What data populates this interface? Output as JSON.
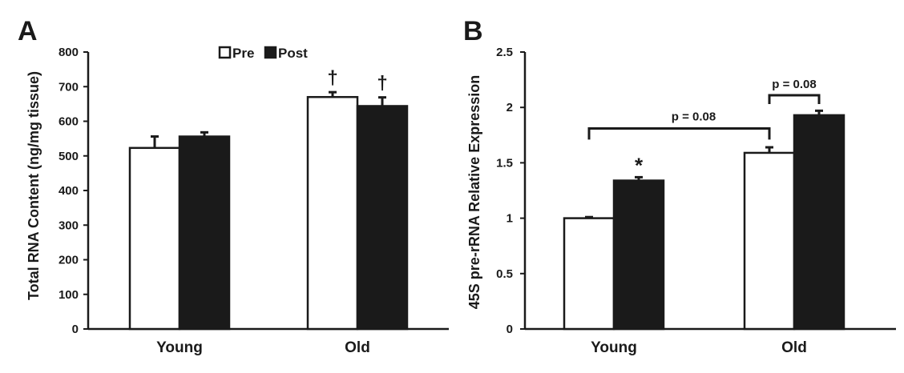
{
  "chart_data": [
    {
      "type": "bar",
      "panel": "A",
      "categories": [
        "Young",
        "Old"
      ],
      "ylabel": "Total RNA Content (ng/mg tissue)",
      "ylim": [
        0,
        800
      ],
      "yticks": [
        0,
        100,
        200,
        300,
        400,
        500,
        600,
        700,
        800
      ],
      "legend": {
        "placement": "top-center",
        "entries": [
          "Pre",
          "Post"
        ]
      },
      "series": [
        {
          "name": "Pre",
          "color": "#ffffff",
          "values": [
            523,
            670
          ],
          "errors": [
            33,
            14
          ]
        },
        {
          "name": "Post",
          "color": "#1a1a1a",
          "values": [
            556,
            644
          ],
          "errors": [
            12,
            25
          ]
        }
      ],
      "annotations": [
        {
          "text": "†",
          "category": "Old",
          "series": "Pre"
        },
        {
          "text": "†",
          "category": "Old",
          "series": "Post"
        }
      ],
      "grid": false
    },
    {
      "type": "bar",
      "panel": "B",
      "categories": [
        "Young",
        "Old"
      ],
      "ylabel": "45S pre-rRNA Relative Expression",
      "ylim": [
        0,
        2.5
      ],
      "yticks": [
        "0",
        "0.5",
        "1",
        "1.5",
        "2",
        "2.5"
      ],
      "series": [
        {
          "name": "Pre",
          "color": "#ffffff",
          "values": [
            1.0,
            1.59
          ],
          "errors": [
            0.01,
            0.05
          ]
        },
        {
          "name": "Post",
          "color": "#1a1a1a",
          "values": [
            1.34,
            1.93
          ],
          "errors": [
            0.03,
            0.04
          ]
        }
      ],
      "annotations": [
        {
          "text": "*",
          "category": "Young",
          "series": "Post"
        }
      ],
      "brackets": [
        {
          "text": "p = 0.08",
          "from": "Young",
          "to": "Old"
        },
        {
          "text": "p = 0.08",
          "from": "Old Pre",
          "to": "Old Post"
        }
      ],
      "grid": false
    }
  ]
}
